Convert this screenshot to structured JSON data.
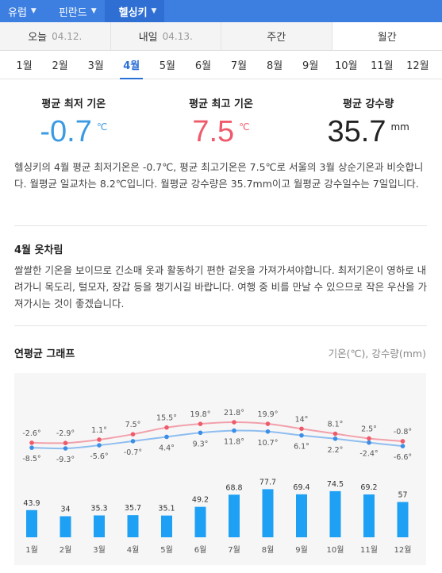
{
  "breadcrumb": [
    {
      "label": "유럽"
    },
    {
      "label": "핀란드"
    },
    {
      "label": "헬싱키"
    }
  ],
  "day_tabs": [
    {
      "label": "오늘",
      "date": "04.12."
    },
    {
      "label": "내일",
      "date": "04.13."
    },
    {
      "label": "주간",
      "date": ""
    },
    {
      "label": "월간",
      "date": ""
    }
  ],
  "months": [
    "1월",
    "2월",
    "3월",
    "4월",
    "5월",
    "6월",
    "7월",
    "8월",
    "9월",
    "10월",
    "11월",
    "12월"
  ],
  "active_month": "4월",
  "stats": {
    "low": {
      "label": "평균 최저 기온",
      "value": "-0.7",
      "unit": "℃"
    },
    "high": {
      "label": "평균 최고 기온",
      "value": "7.5",
      "unit": "℃"
    },
    "rain": {
      "label": "평균 강수량",
      "value": "35.7",
      "unit": "mm"
    }
  },
  "description": "헬싱키의 4월 평균 최저기온은 -0.7℃, 평균 최고기온은 7.5℃로 서울의 3월 상순기온과 비슷합니다. 월평균 일교차는 8.2℃입니다. 월평균 강수량은 35.7mm이고 월평균 강수일수는 7일입니다.",
  "outfit": {
    "title": "4월 옷차림",
    "text": "쌀쌀한 기온을 보이므로 긴소매 옷과 활동하기 편한 겉옷을 가져가셔야합니다. 최저기온이 영하로 내려가니 목도리, 털모자, 장갑 등을 챙기시길 바랍니다. 여행 중 비를 만날 수 있으므로 작은 우산을 가져가시는 것이 좋겠습니다."
  },
  "graph": {
    "title": "연평균 그래프",
    "units": "기온(℃), 강수량(mm)"
  },
  "colors": {
    "high_line": "#f2a0ab",
    "high_point": "#ef5a6b",
    "low_line": "#8fbdf0",
    "low_point": "#3b8ee6",
    "bar": "#1ea0f5"
  },
  "chart_data": {
    "type": "line+bar",
    "categories": [
      "1월",
      "2월",
      "3월",
      "4월",
      "5월",
      "6월",
      "7월",
      "8월",
      "9월",
      "10월",
      "11월",
      "12월"
    ],
    "high_labels": [
      "-2.6°",
      "-2.9°",
      "1.1°",
      "7.5°",
      "15.5°",
      "19.8°",
      "21.8°",
      "19.9°",
      "14°",
      "8.1°",
      "2.5°",
      "-0.8°"
    ],
    "low_labels": [
      "-8.5°",
      "-9.3°",
      "-5.6°",
      "-0.7°",
      "4.4°",
      "9.3°",
      "11.8°",
      "10.7°",
      "6.1°",
      "2.2°",
      "-2.4°",
      "-6.6°"
    ],
    "rain_labels": [
      "43.9",
      "34",
      "35.3",
      "35.7",
      "35.1",
      "49.2",
      "68.8",
      "77.7",
      "69.4",
      "74.5",
      "69.2",
      "57"
    ],
    "series": [
      {
        "values": [
          -2.6,
          -2.9,
          1.1,
          7.5,
          15.5,
          19.8,
          21.8,
          19.9,
          14,
          8.1,
          2.5,
          -0.8
        ]
      },
      {
        "values": [
          -8.5,
          -9.3,
          -5.6,
          -0.7,
          4.4,
          9.3,
          11.8,
          10.7,
          6.1,
          2.2,
          -2.4,
          -6.6
        ]
      },
      {
        "values": [
          43.9,
          34,
          35.3,
          35.7,
          35.1,
          49.2,
          68.8,
          77.7,
          69.4,
          74.5,
          69.2,
          57
        ]
      }
    ]
  }
}
